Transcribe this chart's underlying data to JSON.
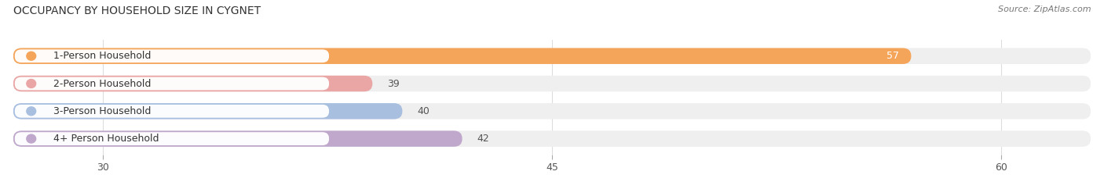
{
  "title": "OCCUPANCY BY HOUSEHOLD SIZE IN CYGNET",
  "source": "Source: ZipAtlas.com",
  "categories": [
    "1-Person Household",
    "2-Person Household",
    "3-Person Household",
    "4+ Person Household"
  ],
  "values": [
    57,
    39,
    40,
    42
  ],
  "bar_colors": [
    "#F5A55A",
    "#EAA5A5",
    "#A8BFE0",
    "#C0A8CC"
  ],
  "xlim_data_min": 0,
  "xlim_data_max": 63,
  "xaxis_min": 27,
  "xaxis_max": 63,
  "xticks": [
    30,
    45,
    60
  ],
  "figsize": [
    14.06,
    2.33
  ],
  "dpi": 100,
  "bar_height": 0.58,
  "background_color": "#FFFFFF",
  "bar_bg_color": "#EFEFEF",
  "grid_color": "#DDDDDD",
  "title_fontsize": 10,
  "tick_fontsize": 9,
  "label_fontsize": 9,
  "value_fontsize": 9
}
